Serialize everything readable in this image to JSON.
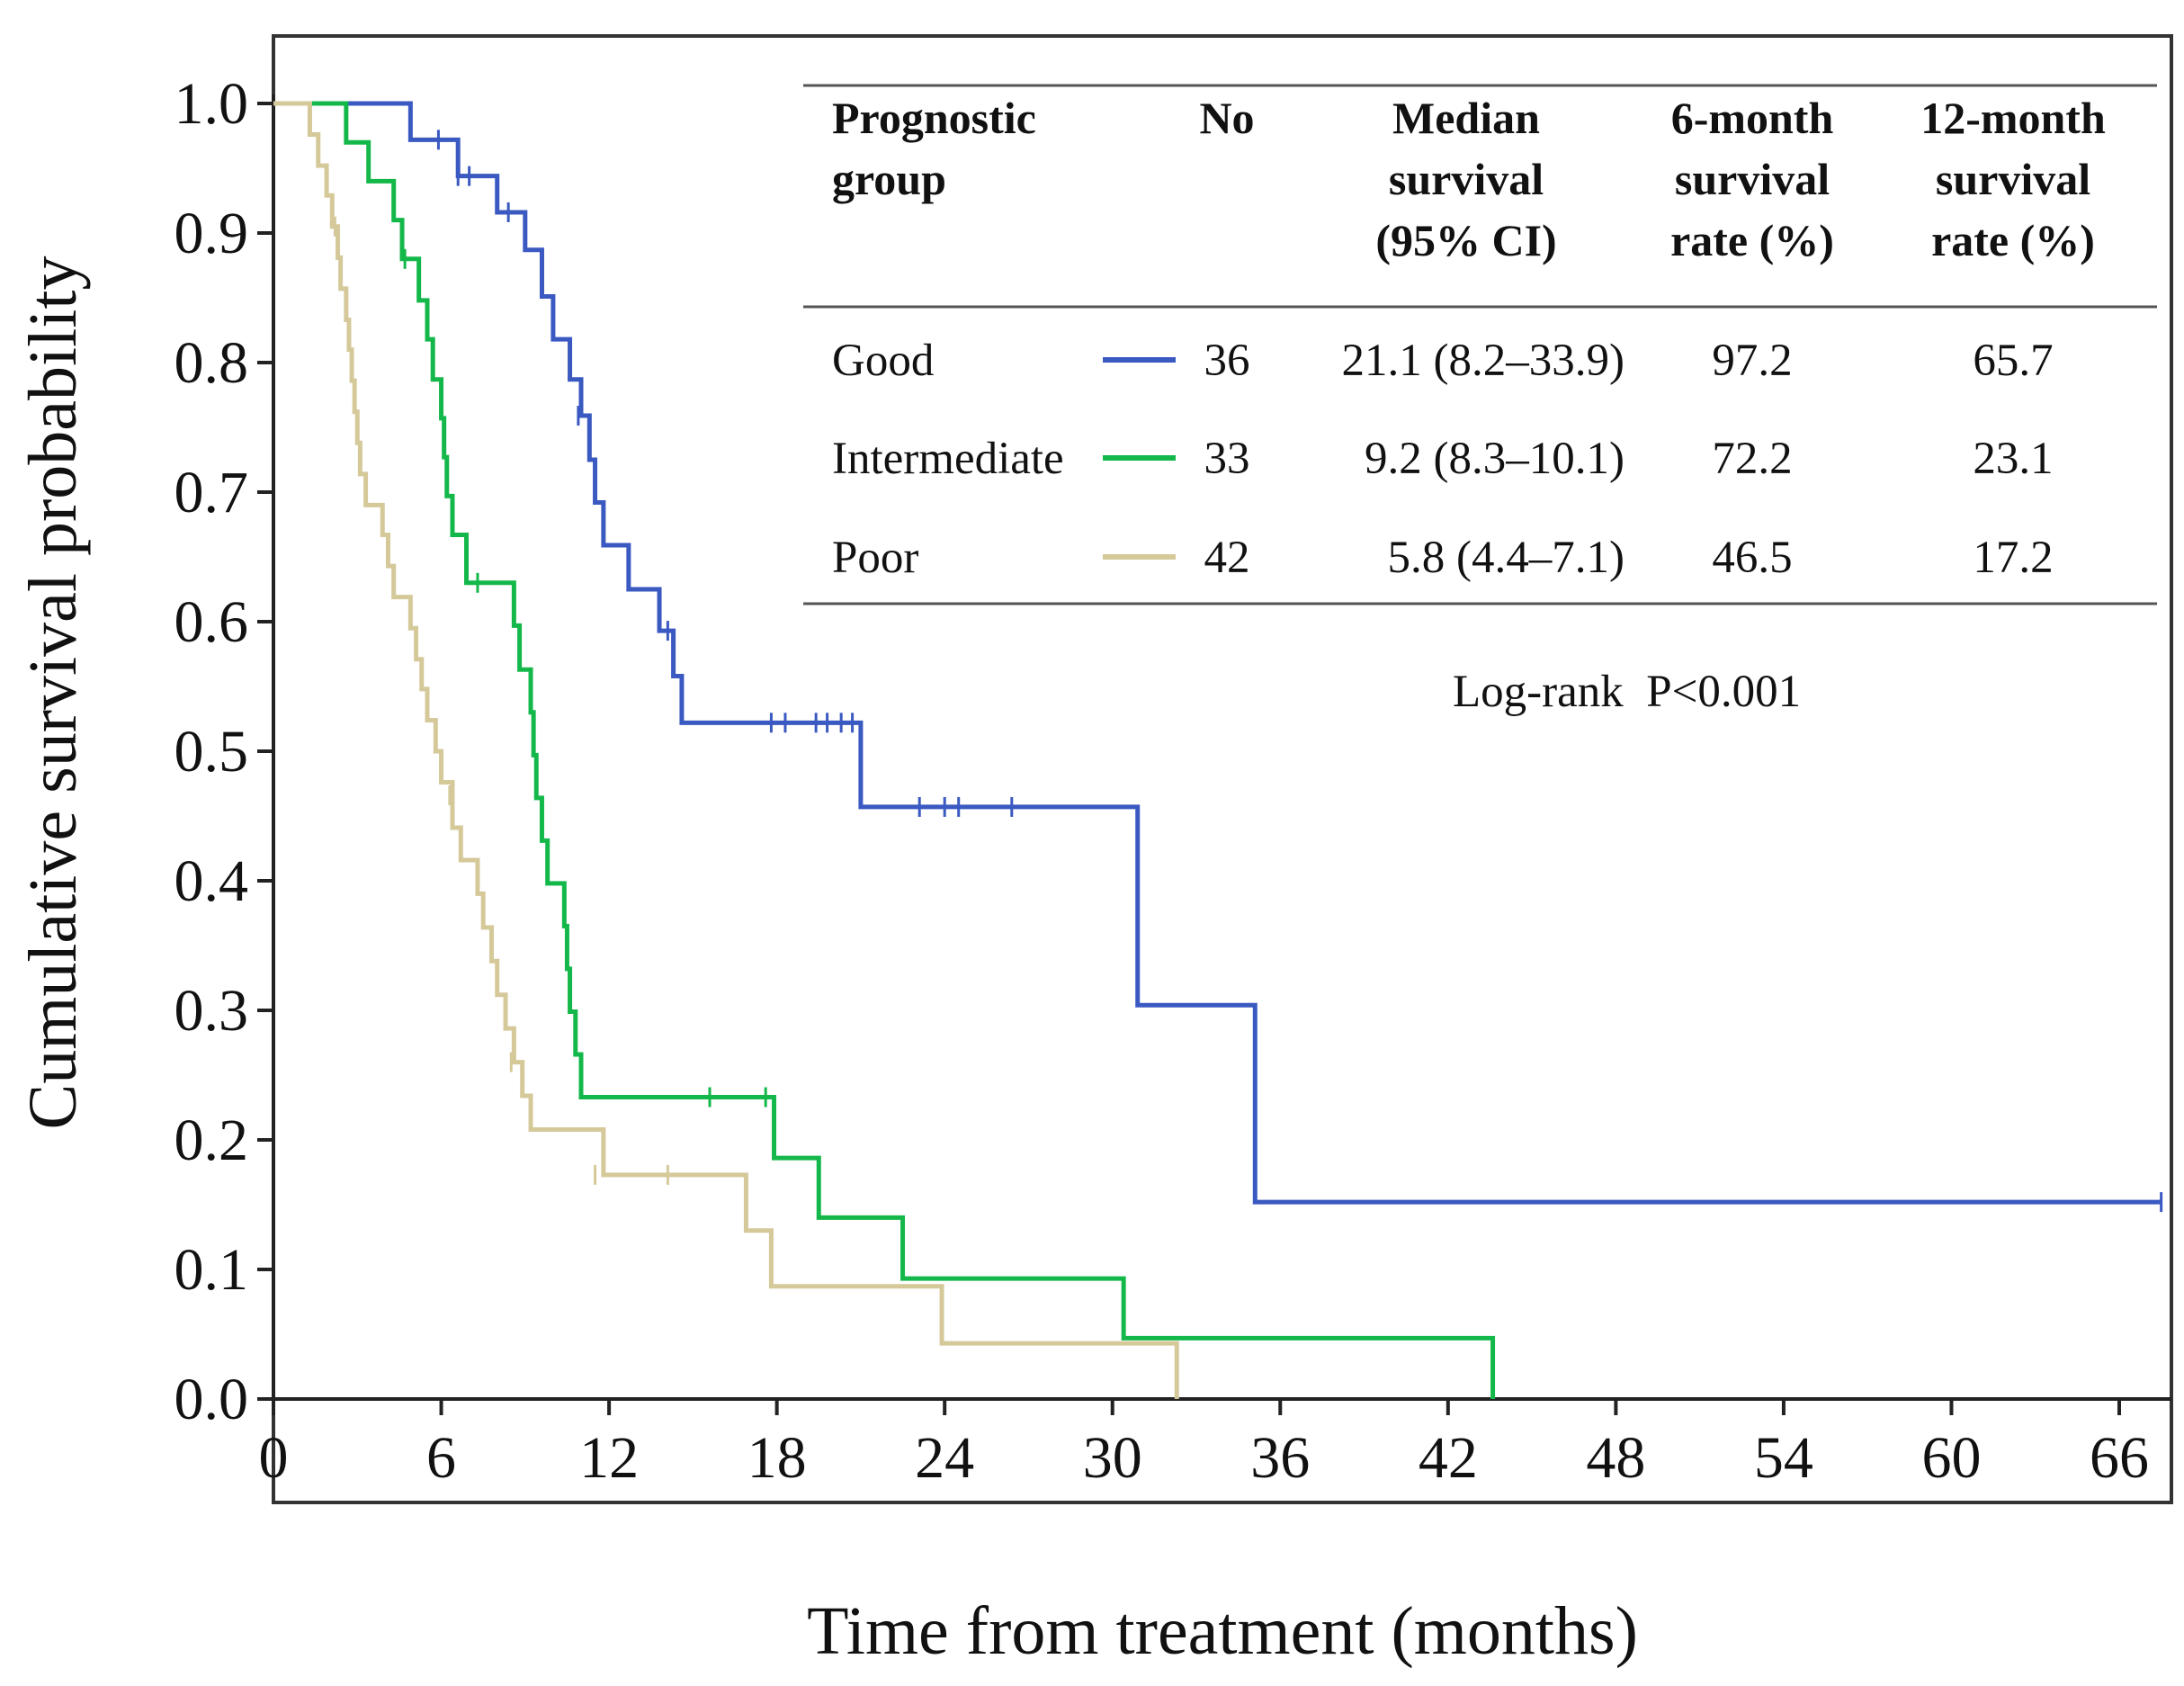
{
  "chart_data": {
    "type": "line",
    "subtype": "kaplan-meier",
    "xlabel": "Time from treatment (months)",
    "ylabel": "Cumulative survival probability",
    "xlim": [
      0,
      68
    ],
    "ylim": [
      0,
      1.0
    ],
    "x_ticks": [
      0,
      6,
      12,
      18,
      24,
      30,
      36,
      42,
      48,
      54,
      60,
      66
    ],
    "x_tick_labels": [
      "0",
      "6",
      "12",
      "18",
      "24",
      "30",
      "36",
      "42",
      "48",
      "54",
      "60",
      "66"
    ],
    "y_ticks": [
      0,
      0.1,
      0.2,
      0.3,
      0.4,
      0.5,
      0.6,
      0.7,
      0.8,
      0.9,
      1.0
    ],
    "y_tick_labels": [
      "0.0",
      "0.1",
      "0.2",
      "0.3",
      "0.4",
      "0.5",
      "0.6",
      "0.7",
      "0.8",
      "0.9",
      "1.0"
    ],
    "grid": false,
    "annotation": "Log-rank  P<0.001",
    "series": [
      {
        "name": "Good",
        "color": "#3a59c1",
        "steps": [
          [
            0,
            1.0
          ],
          [
            4.9,
            0.972
          ],
          [
            6.6,
            0.944
          ],
          [
            8.0,
            0.916
          ],
          [
            9.0,
            0.887
          ],
          [
            9.6,
            0.851
          ],
          [
            10.0,
            0.818
          ],
          [
            10.6,
            0.787
          ],
          [
            11.0,
            0.759
          ],
          [
            11.3,
            0.725
          ],
          [
            11.5,
            0.692
          ],
          [
            11.8,
            0.659
          ],
          [
            12.7,
            0.625
          ],
          [
            13.8,
            0.593
          ],
          [
            14.3,
            0.558
          ],
          [
            14.6,
            0.522
          ],
          [
            21.0,
            0.457
          ],
          [
            30.9,
            0.304
          ],
          [
            35.1,
            0.152
          ],
          [
            67.5,
            0.152
          ]
        ],
        "censored": [
          [
            5.9,
            0.972
          ],
          [
            6.6,
            0.944
          ],
          [
            7.0,
            0.944
          ],
          [
            8.4,
            0.916
          ],
          [
            10.9,
            0.759
          ],
          [
            14.1,
            0.593
          ],
          [
            17.8,
            0.522
          ],
          [
            18.3,
            0.522
          ],
          [
            19.4,
            0.522
          ],
          [
            19.8,
            0.522
          ],
          [
            20.3,
            0.522
          ],
          [
            20.7,
            0.522
          ],
          [
            23.1,
            0.457
          ],
          [
            24.0,
            0.457
          ],
          [
            24.5,
            0.457
          ],
          [
            26.4,
            0.457
          ],
          [
            67.5,
            0.152
          ]
        ]
      },
      {
        "name": "Intermediate",
        "color": "#14b84a",
        "steps": [
          [
            0,
            1.0
          ],
          [
            2.6,
            0.97
          ],
          [
            3.4,
            0.94
          ],
          [
            4.3,
            0.91
          ],
          [
            4.6,
            0.88
          ],
          [
            5.2,
            0.848
          ],
          [
            5.5,
            0.818
          ],
          [
            5.7,
            0.787
          ],
          [
            6.0,
            0.757
          ],
          [
            6.1,
            0.727
          ],
          [
            6.2,
            0.697
          ],
          [
            6.4,
            0.667
          ],
          [
            6.9,
            0.63
          ],
          [
            8.6,
            0.597
          ],
          [
            8.8,
            0.563
          ],
          [
            9.2,
            0.53
          ],
          [
            9.3,
            0.497
          ],
          [
            9.4,
            0.464
          ],
          [
            9.6,
            0.431
          ],
          [
            9.8,
            0.398
          ],
          [
            10.4,
            0.365
          ],
          [
            10.5,
            0.332
          ],
          [
            10.6,
            0.299
          ],
          [
            10.8,
            0.266
          ],
          [
            11.0,
            0.233
          ],
          [
            17.9,
            0.186
          ],
          [
            19.5,
            0.14
          ],
          [
            22.5,
            0.093
          ],
          [
            30.4,
            0.047
          ],
          [
            43.6,
            0.0
          ]
        ],
        "censored": [
          [
            4.7,
            0.88
          ],
          [
            7.3,
            0.63
          ],
          [
            15.6,
            0.233
          ],
          [
            17.6,
            0.233
          ]
        ]
      },
      {
        "name": "Poor",
        "color": "#d5c99a",
        "steps": [
          [
            0,
            1.0
          ],
          [
            1.3,
            0.976
          ],
          [
            1.6,
            0.952
          ],
          [
            1.9,
            0.929
          ],
          [
            2.1,
            0.905
          ],
          [
            2.3,
            0.881
          ],
          [
            2.4,
            0.857
          ],
          [
            2.6,
            0.833
          ],
          [
            2.7,
            0.81
          ],
          [
            2.8,
            0.786
          ],
          [
            2.9,
            0.762
          ],
          [
            3.0,
            0.738
          ],
          [
            3.1,
            0.714
          ],
          [
            3.3,
            0.69
          ],
          [
            3.9,
            0.667
          ],
          [
            4.1,
            0.643
          ],
          [
            4.3,
            0.619
          ],
          [
            4.9,
            0.595
          ],
          [
            5.1,
            0.571
          ],
          [
            5.3,
            0.548
          ],
          [
            5.5,
            0.524
          ],
          [
            5.8,
            0.5
          ],
          [
            6.0,
            0.476
          ],
          [
            6.4,
            0.441
          ],
          [
            6.7,
            0.416
          ],
          [
            7.3,
            0.39
          ],
          [
            7.5,
            0.364
          ],
          [
            7.8,
            0.338
          ],
          [
            8.0,
            0.312
          ],
          [
            8.3,
            0.286
          ],
          [
            8.6,
            0.26
          ],
          [
            8.9,
            0.234
          ],
          [
            9.2,
            0.208
          ],
          [
            11.8,
            0.173
          ],
          [
            16.9,
            0.13
          ],
          [
            17.8,
            0.087
          ],
          [
            23.9,
            0.043
          ],
          [
            32.3,
            0.0
          ]
        ],
        "censored": [
          [
            2.2,
            0.905
          ],
          [
            6.3,
            0.466
          ],
          [
            8.5,
            0.26
          ],
          [
            11.5,
            0.173
          ],
          [
            14.1,
            0.173
          ]
        ]
      }
    ]
  },
  "table": {
    "headers": [
      [
        "Prognostic",
        "group"
      ],
      [
        "No"
      ],
      [
        "Median",
        "survival",
        "(95% CI)"
      ],
      [
        "6-month",
        "survival",
        "rate (%)"
      ],
      [
        "12-month",
        "survival",
        "rate (%)"
      ]
    ],
    "rows": [
      {
        "group": "Good",
        "color": "#3a59c1",
        "no": "36",
        "median": "21.1 (8.2–33.9)",
        "six_month": "97.2",
        "twelve_month": "65.7"
      },
      {
        "group": "Intermediate",
        "color": "#14b84a",
        "no": "33",
        "median": "9.2 (8.3–10.1)",
        "six_month": "72.2",
        "twelve_month": "23.1"
      },
      {
        "group": "Poor",
        "color": "#d5c99a",
        "no": "42",
        "median": "5.8 (4.4–7.1)",
        "six_month": "46.5",
        "twelve_month": "17.2"
      }
    ]
  }
}
